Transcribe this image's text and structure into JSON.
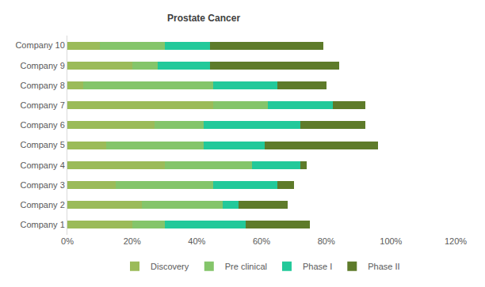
{
  "chart_data": {
    "type": "bar",
    "title": "Prostate Cancer",
    "orientation": "horizontal",
    "stacked": true,
    "grid": false,
    "legend": "bottom",
    "categories": [
      "Company 1",
      "Company 2",
      "Company 3",
      "Company 4",
      "Company 5",
      "Company 6",
      "Company 7",
      "Company 8",
      "Company 9",
      "Company 10"
    ],
    "series": [
      {
        "name": "Discovery",
        "color": "#9bbb59",
        "values": [
          20,
          23,
          15,
          30,
          12,
          27,
          45,
          5,
          20,
          10
        ]
      },
      {
        "name": "Pre clinical",
        "color": "#84c56a",
        "values": [
          10,
          25,
          30,
          27,
          30,
          15,
          17,
          40,
          8,
          20
        ]
      },
      {
        "name": "Phase I",
        "color": "#22c99a",
        "values": [
          25,
          5,
          20,
          15,
          19,
          30,
          20,
          20,
          16,
          14
        ]
      },
      {
        "name": "Phase II",
        "color": "#5e7b2a",
        "values": [
          20,
          15,
          5,
          2,
          35,
          20,
          10,
          15,
          40,
          35
        ]
      }
    ],
    "xlim": [
      0,
      120
    ],
    "xticks": [
      {
        "value": 0,
        "label": "0%"
      },
      {
        "value": 20,
        "label": "20%"
      },
      {
        "value": 40,
        "label": "40%"
      },
      {
        "value": 60,
        "label": "60%"
      },
      {
        "value": 80,
        "label": "80%"
      },
      {
        "value": 100,
        "label": "100%"
      },
      {
        "value": 120,
        "label": "120%"
      }
    ]
  }
}
